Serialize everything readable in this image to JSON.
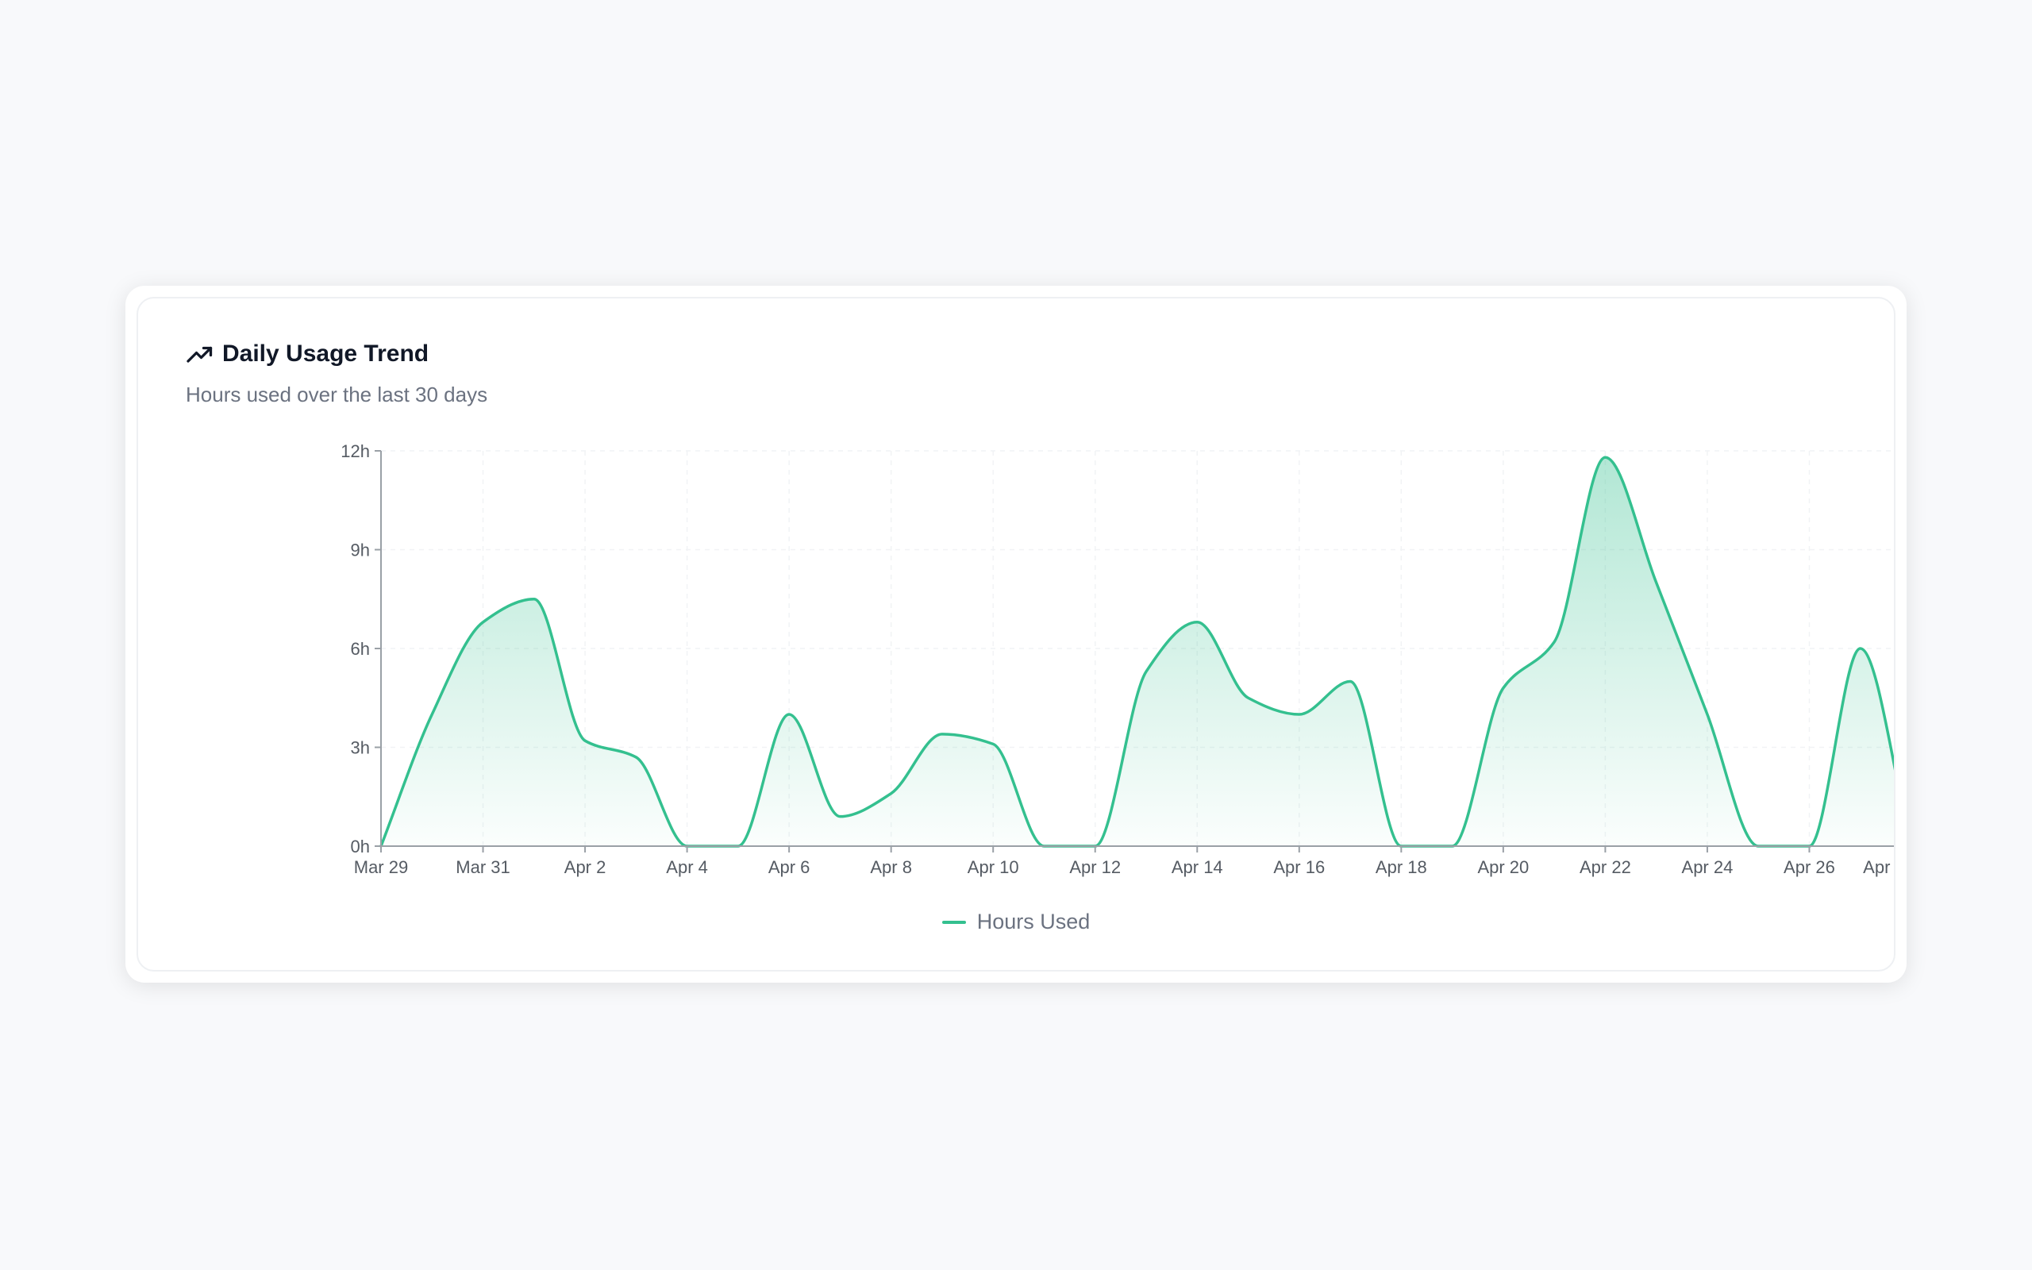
{
  "card": {
    "title": "Daily Usage Trend",
    "subtitle": "Hours used over the last 30 days",
    "title_icon": "trending-up-icon"
  },
  "chart_data": {
    "type": "area",
    "title": "Daily Usage Trend",
    "subtitle": "Hours used over the last 30 days",
    "xlabel": "",
    "ylabel": "",
    "x": [
      "Mar 29",
      "Mar 30",
      "Mar 31",
      "Apr 1",
      "Apr 2",
      "Apr 3",
      "Apr 4",
      "Apr 5",
      "Apr 6",
      "Apr 7",
      "Apr 8",
      "Apr 9",
      "Apr 10",
      "Apr 11",
      "Apr 12",
      "Apr 13",
      "Apr 14",
      "Apr 15",
      "Apr 16",
      "Apr 17",
      "Apr 18",
      "Apr 19",
      "Apr 20",
      "Apr 21",
      "Apr 22",
      "Apr 23",
      "Apr 24",
      "Apr 25",
      "Apr 26",
      "Apr 27",
      "Apr 28"
    ],
    "x_tick_labels": [
      "Mar 29",
      "Mar 31",
      "Apr 2",
      "Apr 4",
      "Apr 6",
      "Apr 8",
      "Apr 10",
      "Apr 12",
      "Apr 14",
      "Apr 16",
      "Apr 18",
      "Apr 20",
      "Apr 22",
      "Apr 24",
      "Apr 26",
      "Apr 28"
    ],
    "y_ticks": [
      0,
      3,
      6,
      9,
      12
    ],
    "y_tick_labels": [
      "0h",
      "3h",
      "6h",
      "9h",
      "12h"
    ],
    "ylim": [
      0,
      12
    ],
    "grid": true,
    "legend_position": "bottom-center",
    "series": [
      {
        "name": "Hours Used",
        "color": "#34c08f",
        "values": [
          0,
          4.0,
          6.8,
          7.5,
          3.2,
          2.7,
          0,
          0,
          4.0,
          0.9,
          1.6,
          3.4,
          3.1,
          0,
          0,
          5.3,
          6.8,
          4.5,
          4.0,
          5.0,
          0,
          0,
          4.8,
          6.2,
          11.8,
          8.0,
          4.0,
          0,
          0,
          6.0,
          0
        ]
      }
    ]
  }
}
